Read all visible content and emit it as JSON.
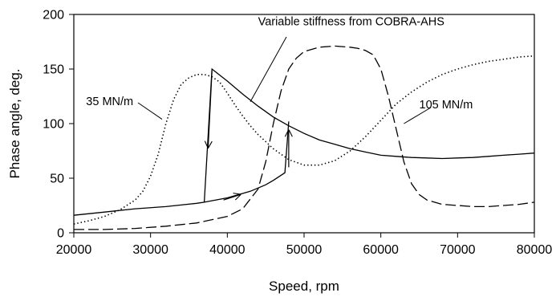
{
  "chart_data": {
    "type": "line",
    "xlabel": "Speed, rpm",
    "ylabel": "Phase angle, deg.",
    "xlim": [
      20000,
      80000
    ],
    "ylim": [
      0,
      200
    ],
    "xticks": [
      20000,
      30000,
      40000,
      50000,
      60000,
      70000,
      80000
    ],
    "yticks": [
      0,
      50,
      100,
      150,
      200
    ],
    "grid": false,
    "series": [
      {
        "name": "35 MN/m",
        "style": "dotted",
        "points": [
          [
            20000,
            8
          ],
          [
            22000,
            11
          ],
          [
            24000,
            15
          ],
          [
            26000,
            21
          ],
          [
            28000,
            30
          ],
          [
            29000,
            38
          ],
          [
            30000,
            52
          ],
          [
            31000,
            72
          ],
          [
            32000,
            100
          ],
          [
            33000,
            122
          ],
          [
            34000,
            136
          ],
          [
            35000,
            142
          ],
          [
            36000,
            145
          ],
          [
            37000,
            145
          ],
          [
            38000,
            143
          ],
          [
            39000,
            138
          ],
          [
            40000,
            128
          ],
          [
            41000,
            117
          ],
          [
            42000,
            107
          ],
          [
            43000,
            98
          ],
          [
            44000,
            90
          ],
          [
            46000,
            77
          ],
          [
            48000,
            67
          ],
          [
            50000,
            62
          ],
          [
            52000,
            62
          ],
          [
            54000,
            66
          ],
          [
            56000,
            75
          ],
          [
            58000,
            88
          ],
          [
            60000,
            103
          ],
          [
            62000,
            118
          ],
          [
            64000,
            129
          ],
          [
            66000,
            138
          ],
          [
            68000,
            145
          ],
          [
            70000,
            150
          ],
          [
            72000,
            154
          ],
          [
            74000,
            157
          ],
          [
            76000,
            159
          ],
          [
            78000,
            161
          ],
          [
            80000,
            162
          ]
        ]
      },
      {
        "name": "105 MN/m",
        "style": "dashed",
        "points": [
          [
            20000,
            3
          ],
          [
            24000,
            3
          ],
          [
            28000,
            4
          ],
          [
            32000,
            6
          ],
          [
            36000,
            9
          ],
          [
            40000,
            15
          ],
          [
            42000,
            22
          ],
          [
            44000,
            40
          ],
          [
            45000,
            65
          ],
          [
            46000,
            100
          ],
          [
            47000,
            130
          ],
          [
            48000,
            150
          ],
          [
            49000,
            160
          ],
          [
            50000,
            166
          ],
          [
            52000,
            170
          ],
          [
            54000,
            171
          ],
          [
            56000,
            170
          ],
          [
            57000,
            169
          ],
          [
            58000,
            167
          ],
          [
            59000,
            163
          ],
          [
            60000,
            150
          ],
          [
            61000,
            125
          ],
          [
            62000,
            95
          ],
          [
            63000,
            65
          ],
          [
            64000,
            45
          ],
          [
            65000,
            35
          ],
          [
            66000,
            30
          ],
          [
            68000,
            26
          ],
          [
            70000,
            25
          ],
          [
            72000,
            24
          ],
          [
            74000,
            24
          ],
          [
            76000,
            25
          ],
          [
            78000,
            26
          ],
          [
            80000,
            28
          ]
        ]
      },
      {
        "name": "Variable stiffness from COBRA-AHS",
        "style": "solid",
        "points": [
          [
            20000,
            16
          ],
          [
            24000,
            19
          ],
          [
            28000,
            22
          ],
          [
            32000,
            24
          ],
          [
            36000,
            27
          ],
          [
            37000,
            28
          ],
          [
            38000,
            150
          ],
          [
            40000,
            139
          ],
          [
            42000,
            127
          ],
          [
            44000,
            116
          ],
          [
            46000,
            106
          ],
          [
            48000,
            98
          ],
          [
            50000,
            91
          ],
          [
            52000,
            85
          ],
          [
            54000,
            81
          ],
          [
            56000,
            77
          ],
          [
            58000,
            74
          ],
          [
            60000,
            71
          ],
          [
            62000,
            70
          ],
          [
            64000,
            69
          ],
          [
            66000,
            68.5
          ],
          [
            68000,
            68
          ],
          [
            70000,
            68.5
          ],
          [
            72000,
            69
          ],
          [
            74000,
            70
          ],
          [
            76000,
            71
          ],
          [
            78000,
            72
          ],
          [
            80000,
            73
          ]
        ]
      },
      {
        "name": "",
        "style": "solid",
        "points": [
          [
            37000,
            28
          ],
          [
            40000,
            32
          ],
          [
            43000,
            38
          ],
          [
            45000,
            44
          ],
          [
            46000,
            48
          ],
          [
            47500,
            55
          ],
          [
            48000,
            102
          ]
        ]
      }
    ],
    "arrows": [
      {
        "from": [
          38000,
          148
        ],
        "to": [
          37500,
          78
        ]
      },
      {
        "from": [
          48000,
          60
        ],
        "to": [
          48000,
          94
        ]
      },
      {
        "from": [
          39500,
          30
        ],
        "to": [
          41700,
          35
        ]
      }
    ],
    "annotations": [
      {
        "text": "Variable stiffness from COBRA-AHS",
        "anchor_text": [
          44000,
          190
        ],
        "pointer_to": [
          43000,
          120
        ]
      },
      {
        "text": "35 MN/m",
        "anchor_text": [
          21600,
          117
        ],
        "pointer_to": [
          31500,
          105
        ]
      },
      {
        "text": "105 MN/m",
        "anchor_text": [
          65000,
          114
        ],
        "pointer_to": [
          63000,
          100
        ]
      }
    ]
  }
}
